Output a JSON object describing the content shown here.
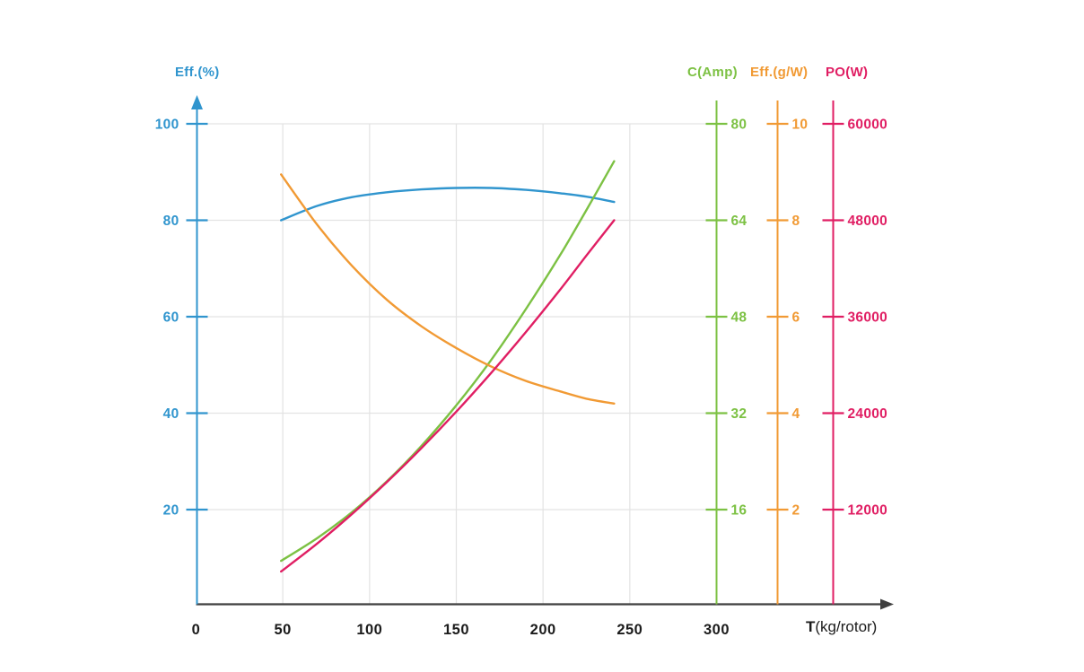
{
  "chart_data": {
    "type": "line",
    "title": "",
    "background": "#ffffff",
    "grid": {
      "color": "#e3e3e3",
      "x_axis_color": "#3f3f3f",
      "grid_on": true
    },
    "x": {
      "title_bold": "T",
      "title_rest": "(kg/rotor)",
      "ticks": [
        0,
        50,
        100,
        150,
        200,
        250,
        300
      ],
      "range": [
        0,
        300
      ],
      "tick_color": "#1b1b1b"
    },
    "axes": {
      "left": {
        "id": "eff_pct",
        "title": "Eff.(%)",
        "color": "#3095ce",
        "ticks": [
          100,
          80,
          60,
          40,
          20
        ]
      },
      "right": [
        {
          "id": "c_amp",
          "title": "C(Amp)",
          "color": "#7cc143",
          "ticks": [
            80,
            64,
            48,
            32,
            16
          ]
        },
        {
          "id": "eff_gw",
          "title": "Eff.(g/W)",
          "color": "#f19a34",
          "ticks": [
            10,
            8,
            6,
            4,
            2
          ]
        },
        {
          "id": "po_w",
          "title": "PO(W)",
          "color": "#e01e63",
          "ticks": [
            60000,
            48000,
            36000,
            24000,
            12000
          ]
        }
      ]
    },
    "series": [
      {
        "id": "eff_pct",
        "name": "Eff.(%)",
        "axis": "eff_pct",
        "color": "#3095ce",
        "points": [
          [
            49,
            80
          ],
          [
            70,
            83
          ],
          [
            90,
            84.8
          ],
          [
            110,
            85.8
          ],
          [
            130,
            86.4
          ],
          [
            150,
            86.7
          ],
          [
            170,
            86.7
          ],
          [
            190,
            86.3
          ],
          [
            210,
            85.6
          ],
          [
            225,
            84.9
          ],
          [
            241,
            83.8
          ]
        ]
      },
      {
        "id": "c_amp",
        "name": "C(Amp)",
        "axis": "c_amp",
        "color": "#7cc143",
        "points": [
          [
            49,
            7.5
          ],
          [
            70,
            11.3
          ],
          [
            90,
            15.6
          ],
          [
            110,
            20.7
          ],
          [
            130,
            26.6
          ],
          [
            150,
            33.3
          ],
          [
            170,
            40.8
          ],
          [
            190,
            49.2
          ],
          [
            210,
            58.3
          ],
          [
            225,
            65.7
          ],
          [
            241,
            73.8
          ]
        ]
      },
      {
        "id": "eff_gw",
        "name": "Eff.(g/W)",
        "axis": "eff_gw",
        "color": "#f19a34",
        "points": [
          [
            49,
            8.95
          ],
          [
            70,
            7.9
          ],
          [
            90,
            7.05
          ],
          [
            110,
            6.35
          ],
          [
            130,
            5.8
          ],
          [
            150,
            5.35
          ],
          [
            170,
            4.97
          ],
          [
            190,
            4.67
          ],
          [
            210,
            4.45
          ],
          [
            225,
            4.3
          ],
          [
            241,
            4.2
          ]
        ]
      },
      {
        "id": "po_w",
        "name": "PO(W)",
        "axis": "po_w",
        "color": "#e01e63",
        "points": [
          [
            49,
            4300
          ],
          [
            70,
            7800
          ],
          [
            90,
            11480
          ],
          [
            110,
            15440
          ],
          [
            130,
            19670
          ],
          [
            150,
            24190
          ],
          [
            170,
            28990
          ],
          [
            190,
            34060
          ],
          [
            210,
            39410
          ],
          [
            225,
            43610
          ],
          [
            241,
            48000
          ]
        ]
      }
    ]
  }
}
